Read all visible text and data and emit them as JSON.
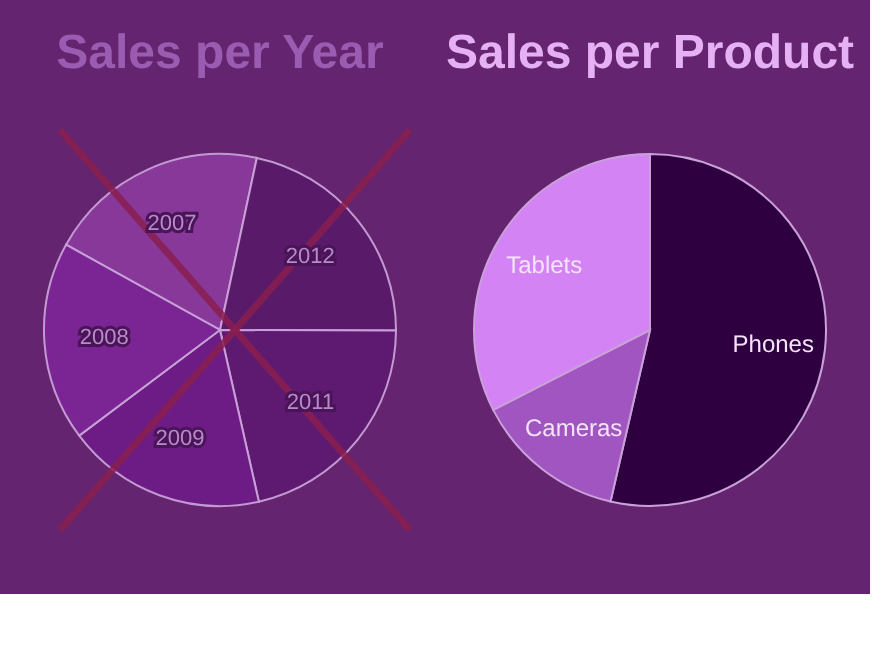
{
  "chart_data": [
    {
      "type": "pie",
      "title": "Sales per Year",
      "categories": [
        "2007",
        "2012",
        "2011",
        "2009",
        "2008"
      ],
      "values": [
        20.3,
        21.7,
        21.4,
        18.3,
        18.3
      ],
      "colors": [
        "#8a3a9c",
        "#5a1a6a",
        "#5e1a72",
        "#6e1c88",
        "#7d2595"
      ],
      "legend": false
    },
    {
      "type": "pie",
      "title": "Sales per Product",
      "categories": [
        "Phones",
        "Cameras",
        "Tablets"
      ],
      "values": [
        53.6,
        13.9,
        32.5
      ],
      "colors": [
        "#2e0040",
        "#a055c0",
        "#d383f3"
      ],
      "legend": false
    }
  ]
}
